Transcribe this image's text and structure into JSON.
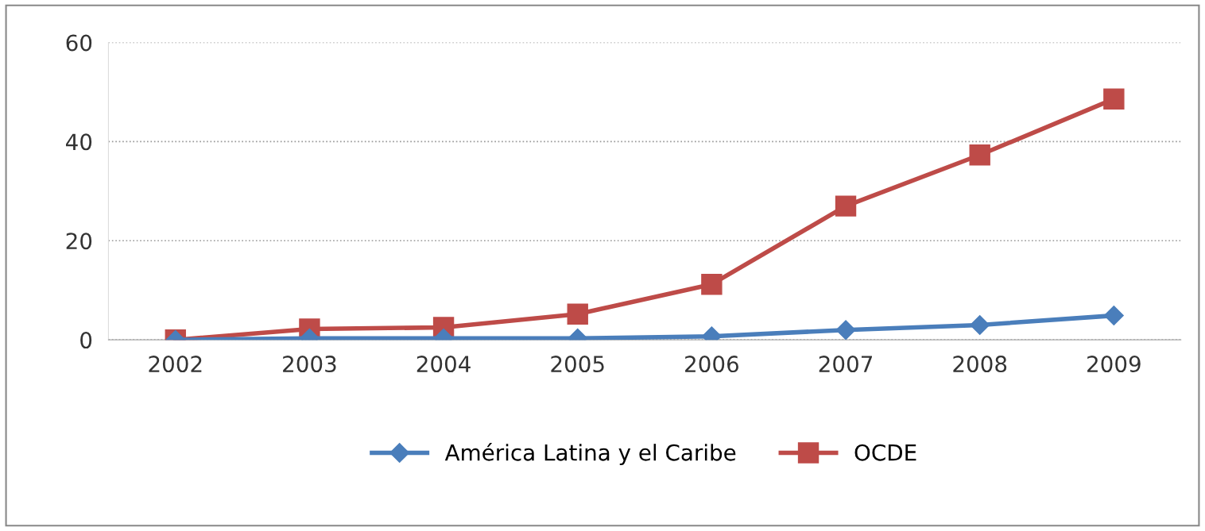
{
  "chart_data": {
    "type": "line",
    "categories": [
      "2002",
      "2003",
      "2004",
      "2005",
      "2006",
      "2007",
      "2008",
      "2009"
    ],
    "series": [
      {
        "name": "América Latina y el Caribe",
        "color": "#4a7ebb",
        "marker": "diamond",
        "values": [
          0,
          0.3,
          0.3,
          0.3,
          0.7,
          2,
          3,
          4.9
        ]
      },
      {
        "name": "OCDE",
        "color": "#be4b48",
        "marker": "square",
        "values": [
          0,
          2.2,
          2.5,
          5.2,
          11.2,
          27,
          37.3,
          48.6
        ]
      }
    ],
    "ylim": [
      0,
      60
    ],
    "yticks": [
      0,
      20,
      40,
      60
    ],
    "grid": "y",
    "legend": "bottom",
    "line_style": "solid"
  }
}
